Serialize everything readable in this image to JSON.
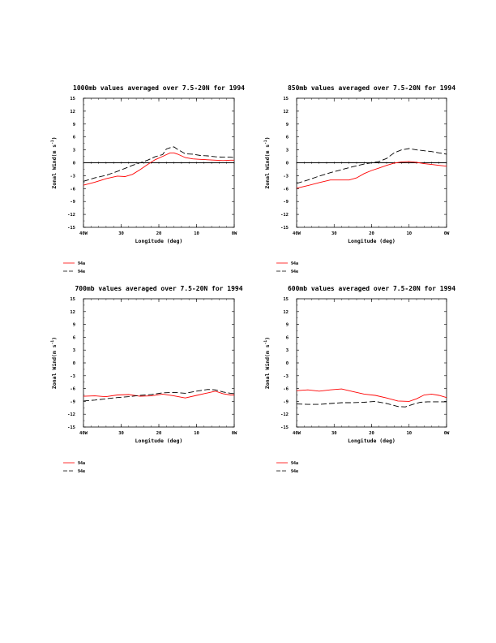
{
  "chart_data": [
    {
      "type": "line",
      "title": "1000mb values averaged over 7.5-20N for 1994",
      "xlabel": "Longitude (deg)",
      "ylabel": "Zonal Wind(m s",
      "ylabel_sup": "-1",
      "ylabel_end": ")",
      "x_tick_labels": [
        "40W",
        "30",
        "20",
        "10",
        "0W"
      ],
      "y_tick_labels": [
        "15",
        "12",
        "9",
        "6",
        "3",
        "0",
        "-3",
        "-6",
        "-9",
        "-12",
        "-15"
      ],
      "xlim": [
        -40,
        0
      ],
      "ylim": [
        -15,
        15
      ],
      "zero_line": true,
      "series": [
        {
          "name": "94a",
          "color": "#ff0000",
          "dash": "solid",
          "x": [
            -40,
            -37,
            -34,
            -31,
            -29,
            -27,
            -25,
            -23,
            -21,
            -19,
            -17,
            -16,
            -15,
            -13,
            -11,
            -9,
            -7,
            -5,
            -3,
            -1,
            0
          ],
          "y": [
            -5.2,
            -4.5,
            -3.7,
            -3.1,
            -3.2,
            -2.7,
            -1.6,
            -0.4,
            0.7,
            1.5,
            2.3,
            2.3,
            2.0,
            1.2,
            0.9,
            0.8,
            0.7,
            0.6,
            0.5,
            0.6,
            0.6
          ]
        },
        {
          "name": "94e",
          "color": "#000000",
          "dash": "dashed",
          "x": [
            -40,
            -37,
            -34,
            -31,
            -29,
            -27,
            -25,
            -23,
            -21,
            -19,
            -18,
            -17,
            -16,
            -15,
            -13,
            -11,
            -9,
            -7,
            -5,
            -3,
            -1,
            0
          ],
          "y": [
            -4.3,
            -3.5,
            -2.9,
            -2.0,
            -1.3,
            -0.6,
            0.0,
            0.6,
            1.4,
            1.9,
            3.2,
            3.5,
            3.7,
            3.1,
            2.1,
            2.0,
            1.7,
            1.6,
            1.4,
            1.3,
            1.3,
            1.2
          ]
        }
      ]
    },
    {
      "type": "line",
      "title": "850mb values averaged over 7.5-20N for 1994",
      "xlabel": "Longitude (deg)",
      "ylabel": "Zonal Wind(m s",
      "ylabel_sup": "-1",
      "ylabel_end": ")",
      "x_tick_labels": [
        "40W",
        "30",
        "20",
        "10",
        "0W"
      ],
      "y_tick_labels": [
        "15",
        "12",
        "9",
        "6",
        "3",
        "0",
        "-3",
        "-6",
        "-9",
        "-12",
        "-15"
      ],
      "xlim": [
        -40,
        0
      ],
      "ylim": [
        -15,
        15
      ],
      "zero_line": true,
      "series": [
        {
          "name": "94a",
          "color": "#ff0000",
          "dash": "solid",
          "x": [
            -40,
            -37,
            -34,
            -31,
            -28,
            -26,
            -24,
            -22,
            -20,
            -18,
            -16,
            -14,
            -12,
            -10,
            -8,
            -6,
            -4,
            -2,
            0
          ],
          "y": [
            -5.9,
            -5.3,
            -4.6,
            -4.0,
            -4.0,
            -4.0,
            -3.5,
            -2.5,
            -1.8,
            -1.2,
            -0.6,
            -0.1,
            0.2,
            0.3,
            0.1,
            -0.2,
            -0.4,
            -0.6,
            -0.8
          ]
        },
        {
          "name": "94e",
          "color": "#000000",
          "dash": "dashed",
          "x": [
            -40,
            -37,
            -34,
            -31,
            -28,
            -25,
            -22,
            -20,
            -18,
            -16,
            -14,
            -12,
            -10,
            -8,
            -6,
            -4,
            -2,
            0
          ],
          "y": [
            -4.8,
            -4.0,
            -3.1,
            -2.3,
            -1.6,
            -0.9,
            -0.3,
            0.0,
            0.3,
            1.0,
            2.3,
            3.0,
            3.3,
            3.0,
            2.8,
            2.6,
            2.3,
            2.0
          ]
        }
      ]
    },
    {
      "type": "line",
      "title": "700mb values averaged over 7.5-20N for 1994",
      "xlabel": "Longitude (deg)",
      "ylabel": "Zonal Wind(m s",
      "ylabel_sup": "-1",
      "ylabel_end": ")",
      "x_tick_labels": [
        "40W",
        "30",
        "20",
        "10",
        "0W"
      ],
      "y_tick_labels": [
        "15",
        "12",
        "9",
        "6",
        "3",
        "0",
        "-3",
        "-6",
        "-9",
        "-12",
        "-15"
      ],
      "xlim": [
        -40,
        0
      ],
      "ylim": [
        -15,
        15
      ],
      "zero_line": false,
      "series": [
        {
          "name": "94a",
          "color": "#ff0000",
          "dash": "solid",
          "x": [
            -40,
            -37,
            -34,
            -31,
            -28,
            -25,
            -22,
            -19,
            -16,
            -13,
            -10,
            -7,
            -5,
            -3,
            -1,
            0
          ],
          "y": [
            -7.8,
            -7.7,
            -7.9,
            -7.5,
            -7.4,
            -7.8,
            -7.7,
            -7.3,
            -7.7,
            -8.2,
            -7.6,
            -7.0,
            -6.6,
            -7.2,
            -7.5,
            -7.5
          ]
        },
        {
          "name": "94e",
          "color": "#000000",
          "dash": "dashed",
          "x": [
            -40,
            -37,
            -34,
            -31,
            -28,
            -25,
            -22,
            -19,
            -16,
            -13,
            -10,
            -7,
            -5,
            -3,
            -1,
            0
          ],
          "y": [
            -8.9,
            -8.7,
            -8.4,
            -8.1,
            -7.9,
            -7.6,
            -7.4,
            -7.0,
            -6.9,
            -7.1,
            -6.6,
            -6.2,
            -6.3,
            -6.8,
            -7.1,
            -7.2
          ]
        }
      ]
    },
    {
      "type": "line",
      "title": "600mb values averaged over 7.5-20N for 1994",
      "xlabel": "Longitude (deg)",
      "ylabel": "Zonal Wind(m s",
      "ylabel_sup": "-1",
      "ylabel_end": ")",
      "x_tick_labels": [
        "40W",
        "30",
        "20",
        "10",
        "0W"
      ],
      "y_tick_labels": [
        "15",
        "12",
        "9",
        "6",
        "3",
        "0",
        "-3",
        "-6",
        "-9",
        "-12",
        "-15"
      ],
      "xlim": [
        -40,
        0
      ],
      "ylim": [
        -15,
        15
      ],
      "zero_line": false,
      "series": [
        {
          "name": "94a",
          "color": "#ff0000",
          "dash": "solid",
          "x": [
            -40,
            -37,
            -34,
            -31,
            -28,
            -25,
            -22,
            -19,
            -16,
            -13,
            -10,
            -8,
            -6,
            -4,
            -2,
            0
          ],
          "y": [
            -6.5,
            -6.3,
            -6.6,
            -6.3,
            -6.1,
            -6.7,
            -7.3,
            -7.6,
            -8.2,
            -8.9,
            -9.0,
            -8.4,
            -7.5,
            -7.3,
            -7.6,
            -8.1
          ]
        },
        {
          "name": "94e",
          "color": "#000000",
          "dash": "dashed",
          "x": [
            -40,
            -37,
            -34,
            -31,
            -28,
            -25,
            -22,
            -19,
            -16,
            -13,
            -11,
            -9,
            -7,
            -5,
            -3,
            -1,
            0
          ],
          "y": [
            -9.6,
            -9.7,
            -9.7,
            -9.5,
            -9.3,
            -9.3,
            -9.2,
            -9.0,
            -9.5,
            -10.2,
            -10.3,
            -9.7,
            -9.2,
            -9.1,
            -9.1,
            -9.1,
            -9.1
          ]
        }
      ]
    }
  ]
}
